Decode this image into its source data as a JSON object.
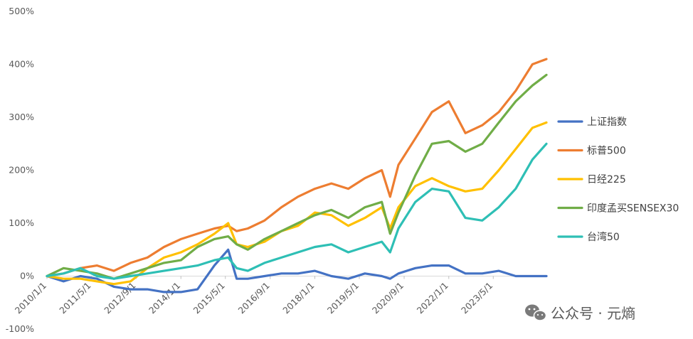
{
  "watermark": {
    "text": "公众号 · 元熵",
    "icon": "wechat-icon"
  },
  "chart_data": {
    "type": "line",
    "title": "",
    "xlabel": "",
    "ylabel": "",
    "y_format": "percent",
    "ylim": [
      -100,
      500
    ],
    "y_ticks": [
      -100,
      0,
      100,
      200,
      300,
      400,
      500
    ],
    "y_tick_labels": [
      "-100%",
      "0%",
      "100%",
      "200%",
      "300%",
      "400%",
      "500%"
    ],
    "x_range": [
      "2010/1/1",
      "2024/12/1"
    ],
    "x_ticks": [
      "2010/1/1",
      "2011/5/1",
      "2012/9/1",
      "2014/1/1",
      "2015/5/1",
      "2016/9/1",
      "2018/1/1",
      "2019/5/1",
      "2020/9/1",
      "2022/1/1",
      "2023/5/1"
    ],
    "grid": false,
    "legend_position": "right",
    "x": [
      "2010/1/1",
      "2010/7/1",
      "2011/1/1",
      "2011/7/1",
      "2012/1/1",
      "2012/7/1",
      "2013/1/1",
      "2013/7/1",
      "2014/1/1",
      "2014/7/1",
      "2015/1/1",
      "2015/6/1",
      "2015/9/1",
      "2016/1/1",
      "2016/7/1",
      "2017/1/1",
      "2017/7/1",
      "2018/1/1",
      "2018/7/1",
      "2019/1/1",
      "2019/7/1",
      "2020/1/1",
      "2020/4/1",
      "2020/7/1",
      "2021/1/1",
      "2021/7/1",
      "2022/1/1",
      "2022/7/1",
      "2023/1/1",
      "2023/7/1",
      "2024/1/1",
      "2024/7/1",
      "2024/12/1"
    ],
    "series": [
      {
        "name": "上证指数",
        "color": "#4472C4",
        "values": [
          0,
          -10,
          0,
          -5,
          -20,
          -25,
          -25,
          -30,
          -30,
          -25,
          20,
          50,
          -5,
          -5,
          0,
          5,
          5,
          10,
          0,
          -5,
          5,
          0,
          -5,
          5,
          15,
          20,
          20,
          5,
          5,
          10,
          0,
          0,
          0
        ]
      },
      {
        "name": "标普500",
        "color": "#ED7D31",
        "values": [
          0,
          5,
          15,
          20,
          10,
          25,
          35,
          55,
          70,
          80,
          90,
          95,
          85,
          90,
          105,
          130,
          150,
          165,
          175,
          165,
          185,
          200,
          150,
          210,
          260,
          310,
          330,
          270,
          285,
          310,
          350,
          400,
          410
        ]
      },
      {
        "name": "日经225",
        "color": "#FFC000",
        "values": [
          0,
          -5,
          -5,
          -10,
          -15,
          -10,
          15,
          35,
          45,
          60,
          80,
          100,
          60,
          55,
          65,
          85,
          95,
          120,
          115,
          95,
          110,
          130,
          90,
          130,
          170,
          185,
          170,
          160,
          165,
          200,
          240,
          280,
          290
        ]
      },
      {
        "name": "印度孟买SENSEX30",
        "color": "#70AD47",
        "values": [
          0,
          15,
          10,
          5,
          -5,
          5,
          15,
          25,
          30,
          55,
          70,
          75,
          60,
          50,
          70,
          85,
          100,
          115,
          125,
          110,
          130,
          140,
          80,
          120,
          190,
          250,
          255,
          235,
          250,
          290,
          330,
          360,
          380
        ]
      },
      {
        "name": "台湾50",
        "color": "#2EBFB5",
        "values": [
          0,
          5,
          15,
          0,
          -5,
          0,
          5,
          10,
          15,
          20,
          30,
          35,
          15,
          10,
          25,
          35,
          45,
          55,
          60,
          45,
          55,
          65,
          45,
          90,
          140,
          165,
          160,
          110,
          105,
          130,
          165,
          220,
          250
        ]
      }
    ]
  }
}
